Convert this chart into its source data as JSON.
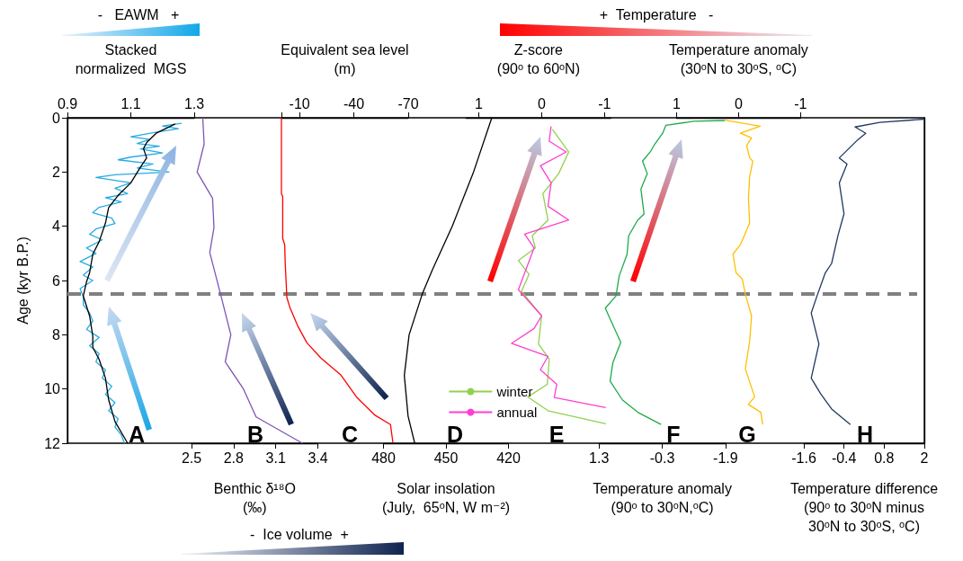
{
  "chart_data": [
    {
      "type": "line",
      "xlabel": "Stacked\nnormalized  MGS",
      "ylabel": "Age (kyr B.P.)",
      "xlim": [
        0.9,
        1.3
      ],
      "xticks": [
        0.9,
        1.1,
        1.3
      ],
      "ylim": [
        12,
        0
      ],
      "yticks": [
        0,
        2,
        4,
        6,
        8,
        10,
        12
      ],
      "series": [
        {
          "color": "#29abe2",
          "x": [
            1.26,
            1.2,
            1.25,
            1.17,
            1.1,
            1.16,
            1.12,
            1.19,
            1.13,
            1.2,
            1.1,
            1.06,
            1.17,
            1.12,
            1.22,
            1.05,
            0.99,
            1.1,
            1.05,
            1.09,
            1.02,
            1.07,
            1.0,
            0.98,
            1.04,
            1.05,
            0.99,
            0.97,
            1.01,
            0.96,
            0.99,
            0.94,
            0.98,
            0.95,
            0.98,
            0.94,
            0.95,
            0.95,
            0.97,
            0.98,
            0.96,
            1.0,
            0.97,
            1.0,
            0.99,
            1.02,
            1.01,
            1.04,
            1.02,
            1.05,
            1.03,
            1.06,
            1.05,
            1.07,
            1.08
          ],
          "values": [
            0.2,
            0.3,
            0.4,
            0.55,
            0.7,
            0.8,
            0.95,
            1.05,
            1.15,
            1.3,
            1.45,
            1.55,
            1.7,
            1.85,
            2.0,
            2.1,
            2.2,
            2.4,
            2.6,
            2.8,
            2.95,
            3.1,
            3.3,
            3.5,
            3.7,
            3.9,
            4.1,
            4.3,
            4.5,
            4.8,
            5.0,
            5.3,
            5.5,
            5.8,
            6.0,
            6.3,
            6.6,
            6.9,
            7.2,
            7.5,
            7.8,
            8.1,
            8.4,
            8.7,
            9.0,
            9.3,
            9.6,
            9.9,
            10.2,
            10.5,
            10.8,
            11.1,
            11.4,
            11.7,
            12.0
          ]
        },
        {
          "color": "#000000",
          "x": [
            1.24,
            1.18,
            1.15,
            1.14,
            1.15,
            1.13,
            1.1,
            1.06,
            1.03,
            1.02,
            1.0,
            0.98,
            0.97,
            0.96,
            0.95,
            0.97,
            0.98,
            0.98,
            1.0,
            1.02,
            1.03,
            1.05,
            1.09
          ],
          "values": [
            0.23,
            0.57,
            0.91,
            1.14,
            1.48,
            1.83,
            2.4,
            2.86,
            3.31,
            3.88,
            4.57,
            5.03,
            5.71,
            6.06,
            6.57,
            7.31,
            8.05,
            8.46,
            8.91,
            9.6,
            10.4,
            11.2,
            12.0
          ]
        }
      ],
      "ref_lines": [
        {
          "axis": "y",
          "value": 6.5,
          "color": "#808080",
          "line_style": "dashed"
        }
      ],
      "annotations": [
        "A",
        "-   EAWM   +"
      ]
    },
    {
      "type": "line",
      "xlabel": "Benthic δ¹⁸O\n(‰)",
      "xlim": [
        2.5,
        3.4
      ],
      "xticks": [
        2.5,
        2.8,
        3.1,
        3.4
      ],
      "ylim": [
        12,
        0
      ],
      "tick_labels": "x",
      "series": [
        {
          "color": "#7f55b5",
          "x": [
            2.58,
            2.59,
            2.54,
            2.65,
            2.66,
            2.63,
            2.71,
            2.78,
            2.74,
            2.87,
            2.96,
            3.29
          ],
          "values": [
            0,
            0.97,
            2.0,
            2.97,
            4.05,
            4.97,
            6.57,
            8.0,
            9.0,
            10.0,
            11.03,
            12.0
          ]
        }
      ],
      "annotations": [
        "B",
        "-  Ice volume  +"
      ]
    },
    {
      "type": "line",
      "xlabel": "Equivalent sea level\n(m)",
      "xlim": [
        0,
        -70
      ],
      "xticks": [
        {
          "value": 0,
          "label": null
        },
        -10,
        -40,
        -70
      ],
      "ylim": [
        12,
        0
      ],
      "tick_labels": "x",
      "series": [
        {
          "color": "#ff0000",
          "x": [
            0,
            0,
            -0.7,
            -0.7,
            -1.8,
            -2.1,
            -3,
            -4.7,
            -8.9,
            -14,
            -21.8,
            -32.9,
            -41.4,
            -51.7,
            -60.2,
            -61.6
          ],
          "values": [
            0,
            2.8,
            2.9,
            4.45,
            4.68,
            5.37,
            6.63,
            7.0,
            7.66,
            8.29,
            8.86,
            9.49,
            10.29,
            10.97,
            11.31,
            12.0
          ]
        }
      ],
      "annotations": [
        "C"
      ]
    },
    {
      "type": "line",
      "xlabel": "Solar insolation\n(July,  65ᵒN, W m⁻²)",
      "xlim": [
        480,
        420
      ],
      "xticks": [
        480,
        450,
        420
      ],
      "ylim": [
        12,
        0
      ],
      "tick_labels": "x",
      "series": [
        {
          "color": "#000000",
          "x": [
            428,
            437,
            447,
            456.5,
            461.4,
            467.7,
            470,
            468.2,
            465
          ],
          "values": [
            0,
            2.05,
            4,
            5.6,
            6.5,
            8,
            9.5,
            11,
            12
          ]
        }
      ],
      "annotations": [
        "D"
      ]
    },
    {
      "type": "line",
      "xlabel": "Z-score\n(90ᵒ to 60ᵒN)",
      "xlim": [
        1.2,
        -1.1
      ],
      "xticks": [
        1,
        0,
        -1
      ],
      "ylim": [
        12,
        0
      ],
      "tick_labels": "x",
      "legend": "bottom left",
      "series": [
        {
          "name": "winter",
          "color": "#92d050",
          "x": [
            -0.17,
            -0.43,
            -0.27,
            -0.02,
            -0.1,
            0.15,
            0.1,
            0.37,
            0.2,
            0.32,
            0,
            0.05,
            -0.12,
            -0.09,
            0.22,
            -0.1,
            -1.02
          ],
          "values": [
            0.43,
            1.26,
            2.06,
            2.8,
            3.77,
            4.35,
            4.8,
            5.26,
            5.77,
            6.4,
            7.3,
            8.34,
            8.9,
            9.83,
            10.29,
            10.8,
            11.28
          ]
        },
        {
          "name": "annual",
          "color": "#ff3fd0",
          "x": [
            -0.15,
            -0.12,
            -0.39,
            0.02,
            -0.15,
            -0.1,
            -0.43,
            0.27,
            0.12,
            0.37,
            0,
            0.12,
            0.48,
            -0.1,
            0.02,
            -0.24,
            -0.2,
            -1.02
          ],
          "values": [
            0.32,
            0.86,
            1.26,
            1.77,
            2.4,
            3.26,
            3.77,
            4.29,
            4.8,
            6.34,
            7.3,
            7.77,
            8.32,
            8.8,
            9.29,
            9.83,
            10.31,
            10.69
          ]
        }
      ],
      "annotations": [
        "E",
        "+  Temperature   -"
      ]
    },
    {
      "type": "line",
      "xlabel": "Temperature anomaly\n(90ᵒ to 30ᵒN,ᵒC)",
      "xlim": [
        1.3,
        -1.9
      ],
      "xticks": [
        1.3,
        -0.3,
        -1.9
      ],
      "ylim": [
        12,
        0
      ],
      "tick_labels": "x",
      "series": [
        {
          "color": "#1faa4b",
          "x": [
            -1.88,
            -1.09,
            -0.39,
            -0.31,
            -0.11,
            0,
            0.2,
            0.08,
            0.24,
            0.16,
            0.32,
            0.55,
            0.59,
            0.79,
            0.87,
            1.14,
            1.02,
            0.75,
            0.95,
            1.02,
            0.71,
            0.32,
            -0.27
          ],
          "values": [
            0.1,
            0.13,
            0.28,
            0.57,
            0.97,
            1.25,
            1.6,
            2.06,
            2.63,
            3.55,
            3.77,
            4.35,
            5.03,
            5.83,
            6.57,
            7.02,
            7.42,
            8.28,
            9.03,
            9.71,
            10.4,
            10.86,
            11.31
          ]
        }
      ],
      "annotations": [
        "F"
      ]
    },
    {
      "type": "line",
      "xlabel": "Temperature anomaly\n(30ᵒN to 30ᵒS, ᵒC)",
      "xlim": [
        1,
        -1
      ],
      "xticks": [
        1,
        0,
        -1
      ],
      "ylim": [
        12,
        0
      ],
      "tick_labels": "x",
      "series": [
        {
          "color": "#ffc000",
          "x": [
            0.22,
            -0.35,
            -0.03,
            -0.21,
            -0.13,
            -0.18,
            -0.23,
            -0.18,
            -0.16,
            -0.18,
            -0.03,
            0.09,
            0.04,
            -0.06,
            -0.11,
            -0.21,
            -0.18,
            -0.11,
            -0.26,
            -0.16,
            -0.36,
            -0.39
          ],
          "values": [
            0.09,
            0.31,
            0.57,
            0.74,
            1.02,
            1.48,
            1.6,
            2.17,
            2.97,
            3.88,
            4.68,
            5.03,
            5.71,
            5.94,
            6.51,
            7.31,
            8.23,
            9.26,
            10.29,
            10.57,
            10.86,
            11.31
          ]
        }
      ],
      "annotations": [
        "G"
      ]
    },
    {
      "type": "line",
      "xlabel": "Temperature difference\n(90ᵒ to 30ᵒN minus\n30ᵒN to 30ᵒS, ᵒC)",
      "xlim": [
        -1.6,
        2
      ],
      "xticks": [
        -1.6,
        -0.4,
        0.8,
        2
      ],
      "ylim": [
        12,
        0
      ],
      "tick_labels": "x",
      "series": [
        {
          "color": "#1f3864",
          "x": [
            2,
            0.67,
            -0.07,
            0.25,
            0.02,
            -0.54,
            -0.31,
            -0.54,
            -0.4,
            -0.58,
            -0.77,
            -0.96,
            -1.19,
            -1.38,
            -1.15,
            -1.38,
            -1.1,
            -0.77,
            -0.21
          ],
          "values": [
            0.05,
            0.17,
            0.34,
            0.57,
            0.8,
            1.48,
            1.71,
            2.4,
            3.54,
            4.34,
            5.37,
            5.72,
            6.51,
            7.2,
            8.34,
            9.6,
            10.17,
            10.74,
            11.31
          ]
        }
      ],
      "annotations": [
        "H"
      ]
    }
  ]
}
